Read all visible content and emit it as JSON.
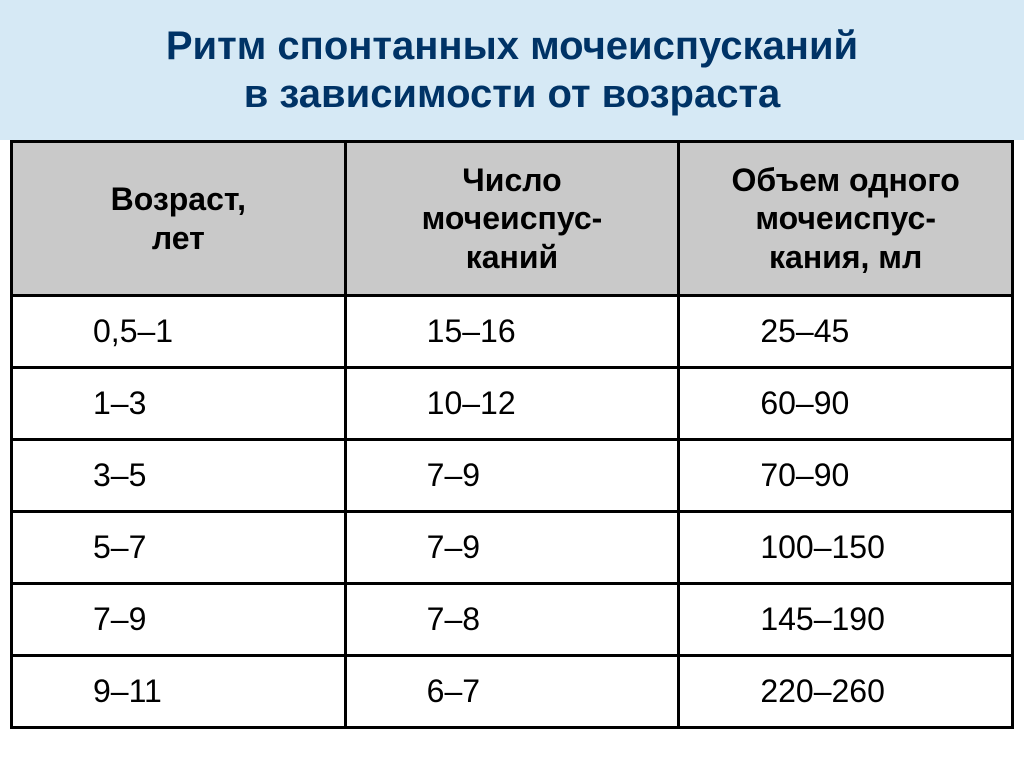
{
  "title_line1": "Ритм спонтанных мочеиспусканий",
  "title_line2": "в зависимости от возраста",
  "table": {
    "columns": [
      "Возраст,\nлет",
      "Число\nмочеиспус-\nканий",
      "Объем одного\nмочеиспус-\nкания, мл"
    ],
    "rows": [
      [
        "0,5–1",
        "15–16",
        "25–45"
      ],
      [
        "1–3",
        "10–12",
        "60–90"
      ],
      [
        "3–5",
        "7–9",
        "70–90"
      ],
      [
        "5–7",
        "7–9",
        "100–150"
      ],
      [
        "7–9",
        "7–8",
        "145–190"
      ],
      [
        "9–11",
        "6–7",
        "220–260"
      ]
    ],
    "header_bg": "#c9c9c9",
    "border_color": "#000000",
    "title_bg": "#d6e9f5",
    "title_color": "#003366",
    "header_fontsize": 32,
    "cell_fontsize": 32,
    "title_fontsize": 40
  }
}
